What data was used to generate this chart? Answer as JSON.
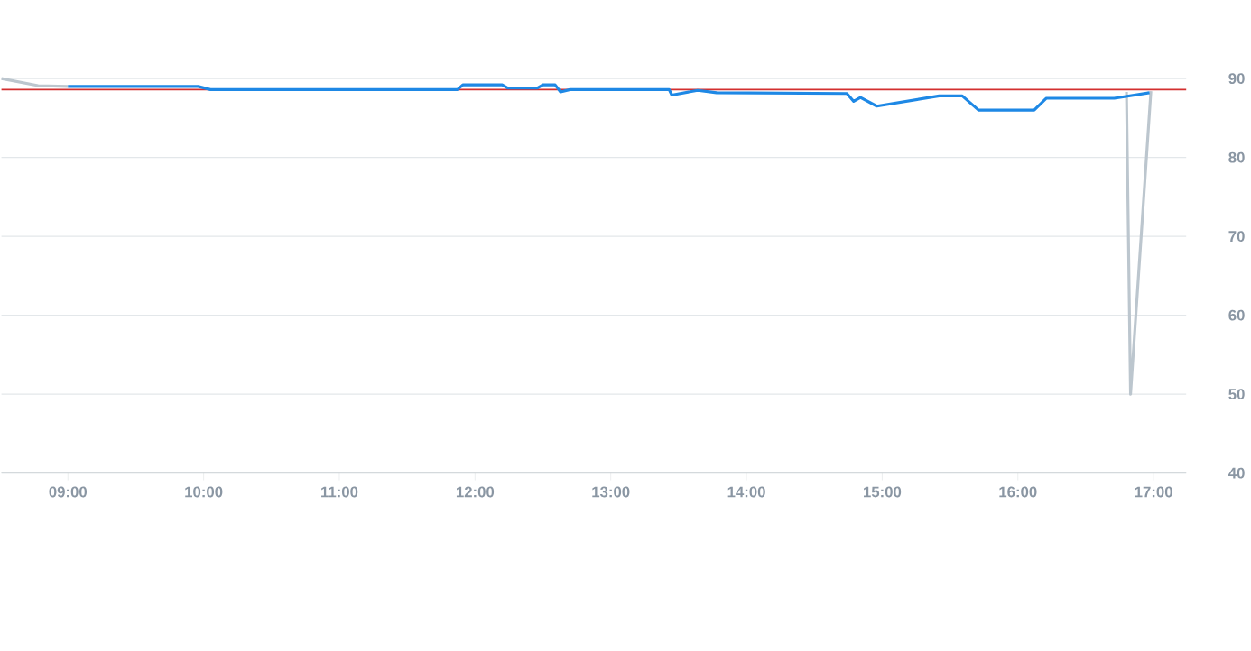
{
  "chart_data": {
    "type": "line",
    "xlim": [
      8.51,
      17.24
    ],
    "ylim": [
      40,
      90
    ],
    "xticks": [
      {
        "value": 9,
        "label": "09:00"
      },
      {
        "value": 10,
        "label": "10:00"
      },
      {
        "value": 11,
        "label": "11:00"
      },
      {
        "value": 12,
        "label": "12:00"
      },
      {
        "value": 13,
        "label": "13:00"
      },
      {
        "value": 14,
        "label": "14:00"
      },
      {
        "value": 15,
        "label": "15:00"
      },
      {
        "value": 16,
        "label": "16:00"
      },
      {
        "value": 17,
        "label": "17:00"
      }
    ],
    "yticks": [
      40,
      50,
      60,
      70,
      80,
      90
    ],
    "grid": "y",
    "marker": "none",
    "line_style": "solid",
    "ref_lines": [
      {
        "axis": "y",
        "value": 88.6,
        "color": "#d32f2f"
      }
    ],
    "series": [
      {
        "color": "#bcc6ce",
        "x": [
          8.51,
          8.78,
          9.0,
          9.1,
          16.8,
          16.83,
          16.98
        ],
        "values": [
          90.0,
          89.1,
          89.0,
          null,
          88.3,
          50.0,
          88.4
        ]
      },
      {
        "color": "#1e88e5",
        "x": [
          9.0,
          9.96,
          10.05,
          11.87,
          11.91,
          12.2,
          12.24,
          12.46,
          12.5,
          12.59,
          12.63,
          12.7,
          13.43,
          13.45,
          13.64,
          13.78,
          14.74,
          14.79,
          14.84,
          14.96,
          15.42,
          15.59,
          15.71,
          16.12,
          16.21,
          16.71,
          16.97
        ],
        "values": [
          89.0,
          89.0,
          88.6,
          88.6,
          89.2,
          89.2,
          88.8,
          88.8,
          89.2,
          89.2,
          88.3,
          88.6,
          88.6,
          87.9,
          88.5,
          88.2,
          88.1,
          87.1,
          87.6,
          86.5,
          87.8,
          87.8,
          86.0,
          86.0,
          87.5,
          87.5,
          88.2
        ]
      }
    ]
  }
}
